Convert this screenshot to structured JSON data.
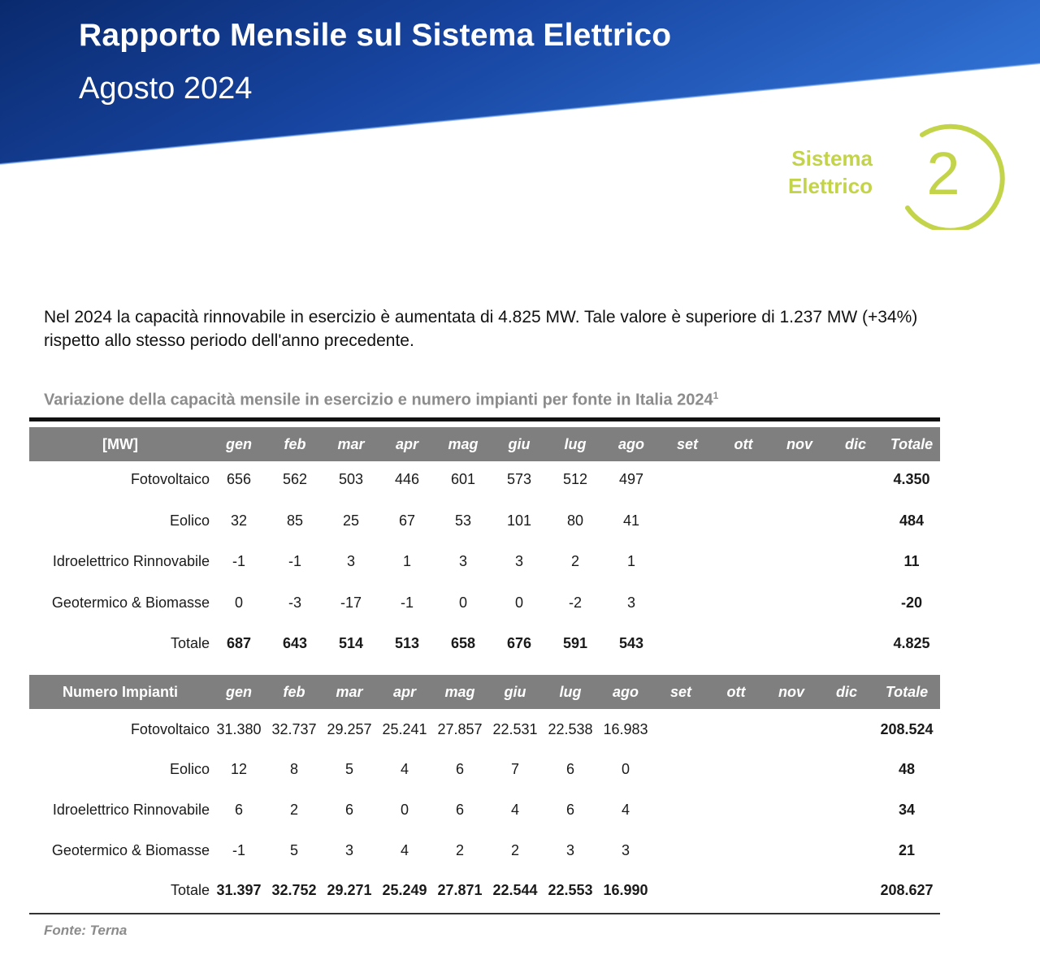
{
  "header": {
    "title": "Rapporto Mensile sul Sistema Elettrico",
    "subtitle": "Agosto 2024"
  },
  "section_badge": {
    "line1": "Sistema",
    "line2": "Elettrico",
    "number": "2"
  },
  "intro": "Nel 2024 la capacità rinnovabile in esercizio è aumentata di 4.825 MW. Tale valore è superiore di 1.237 MW (+34%) rispetto allo stesso periodo dell'anno precedente.",
  "table_title": "Variazione della capacità mensile in esercizio e numero impianti per fonte in Italia 2024",
  "table_title_note": "1",
  "months": [
    "gen",
    "feb",
    "mar",
    "apr",
    "mag",
    "giu",
    "lug",
    "ago",
    "set",
    "ott",
    "nov",
    "dic"
  ],
  "total_label": "Totale",
  "capacity_table": {
    "label": "[MW]",
    "rows": [
      {
        "name": "Fotovoltaico",
        "values": [
          "656",
          "562",
          "503",
          "446",
          "601",
          "573",
          "512",
          "497",
          "",
          "",
          "",
          ""
        ],
        "total": "4.350"
      },
      {
        "name": "Eolico",
        "values": [
          "32",
          "85",
          "25",
          "67",
          "53",
          "101",
          "80",
          "41",
          "",
          "",
          "",
          ""
        ],
        "total": "484"
      },
      {
        "name": "Idroelettrico Rinnovabile",
        "values": [
          "-1",
          "-1",
          "3",
          "1",
          "3",
          "3",
          "2",
          "1",
          "",
          "",
          "",
          ""
        ],
        "total": "11"
      },
      {
        "name": "Geotermico & Biomasse",
        "values": [
          "0",
          "-3",
          "-17",
          "-1",
          "0",
          "0",
          "-2",
          "3",
          "",
          "",
          "",
          ""
        ],
        "total": "-20"
      },
      {
        "name": "Totale",
        "values": [
          "687",
          "643",
          "514",
          "513",
          "658",
          "676",
          "591",
          "543",
          "",
          "",
          "",
          ""
        ],
        "total": "4.825"
      }
    ]
  },
  "plants_table": {
    "label": "Numero Impianti",
    "rows": [
      {
        "name": "Fotovoltaico",
        "values": [
          "31.380",
          "32.737",
          "29.257",
          "25.241",
          "27.857",
          "22.531",
          "22.538",
          "16.983",
          "",
          "",
          "",
          ""
        ],
        "total": "208.524"
      },
      {
        "name": "Eolico",
        "values": [
          "12",
          "8",
          "5",
          "4",
          "6",
          "7",
          "6",
          "0",
          "",
          "",
          "",
          ""
        ],
        "total": "48"
      },
      {
        "name": "Idroelettrico Rinnovabile",
        "values": [
          "6",
          "2",
          "6",
          "0",
          "6",
          "4",
          "6",
          "4",
          "",
          "",
          "",
          ""
        ],
        "total": "34"
      },
      {
        "name": "Geotermico & Biomasse",
        "values": [
          "-1",
          "5",
          "3",
          "4",
          "2",
          "2",
          "3",
          "3",
          "",
          "",
          "",
          ""
        ],
        "total": "21"
      },
      {
        "name": "Totale",
        "values": [
          "31.397",
          "32.752",
          "29.271",
          "25.249",
          "27.871",
          "22.544",
          "22.553",
          "16.990",
          "",
          "",
          "",
          ""
        ],
        "total": "208.627"
      }
    ]
  },
  "source": "Fonte: Terna",
  "colors": {
    "banner_dark": "#0a2a6e",
    "banner_light": "#2f6fd1",
    "badge": "#c3d44a",
    "table_header": "#7f7f7f",
    "muted_text": "#8c8c8c"
  }
}
